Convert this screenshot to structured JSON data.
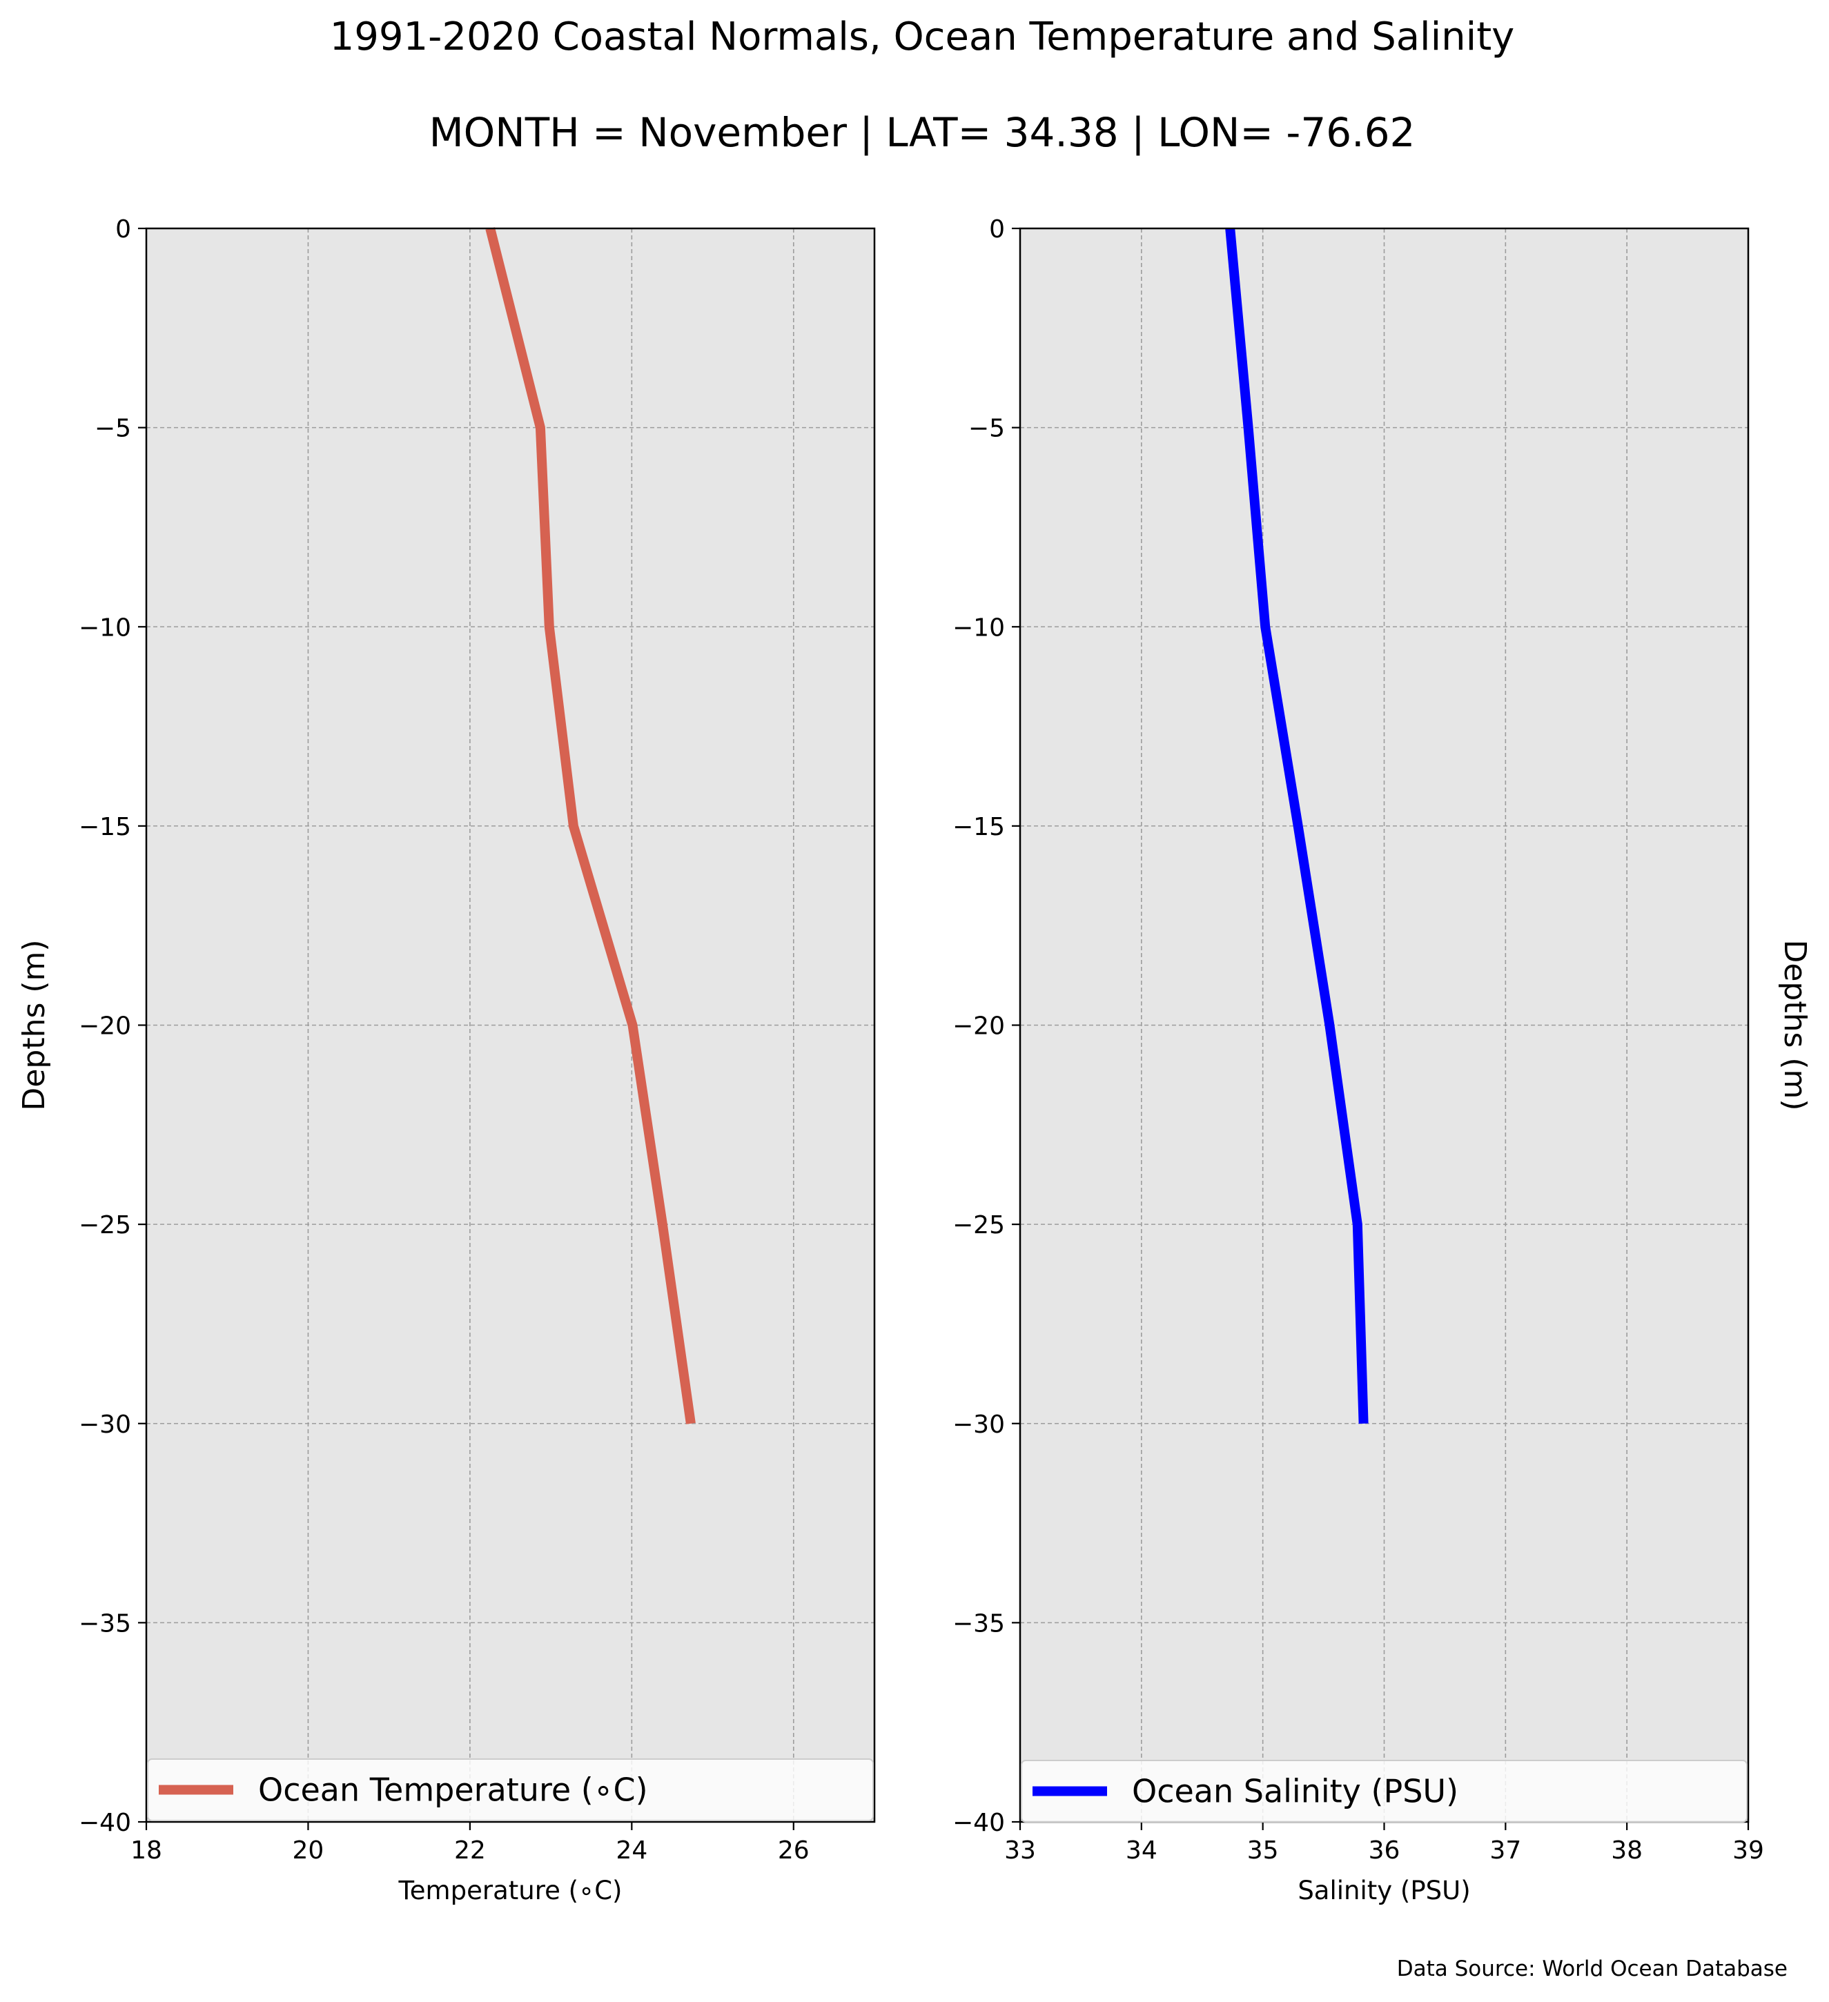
{
  "figure": {
    "title": "1991-2020 Coastal Normals, Ocean Temperature and Salinity",
    "subtitle": "MONTH = November | LAT= 34.38 | LON= -76.62",
    "source": "Data Source: World Ocean Database"
  },
  "chart_data": [
    {
      "type": "line",
      "xlabel": "Temperature ($^\\circ$C)",
      "xlabel_display": "Temperature (∘C)",
      "ylabel": "Depths (m)",
      "xlim": [
        18,
        27
      ],
      "ylim": [
        -40,
        0
      ],
      "xticks": [
        18,
        20,
        22,
        24,
        26
      ],
      "xtick_labels": [
        "18",
        "20",
        "22",
        "24",
        "26"
      ],
      "yticks": [
        0,
        -5,
        -10,
        -15,
        -20,
        -25,
        -30,
        -35,
        -40
      ],
      "ytick_labels": [
        "0",
        "−5",
        "−10",
        "−15",
        "−20",
        "−25",
        "−30",
        "−35",
        "−40"
      ],
      "grid": true,
      "legend_position": "lower center",
      "series": [
        {
          "name": "Ocean Temperature (∘C)",
          "color": "#d66251",
          "x": [
            22.25,
            22.87,
            22.98,
            23.28,
            24.01,
            24.38,
            24.73
          ],
          "y": [
            0,
            -5,
            -10,
            -15,
            -20,
            -25,
            -30
          ]
        }
      ]
    },
    {
      "type": "line",
      "xlabel": "Salinity (PSU)",
      "ylabel": "Depths (m)",
      "xlim": [
        33,
        39
      ],
      "ylim": [
        -40,
        0
      ],
      "xticks": [
        33,
        34,
        35,
        36,
        37,
        38,
        39
      ],
      "xtick_labels": [
        "33",
        "34",
        "35",
        "36",
        "37",
        "38",
        "39"
      ],
      "yticks": [
        0,
        -5,
        -10,
        -15,
        -20,
        -25,
        -30,
        -35,
        -40
      ],
      "ytick_labels": [
        "0",
        "−5",
        "−10",
        "−15",
        "−20",
        "−25",
        "−30",
        "−35",
        "−40"
      ],
      "grid": true,
      "legend_position": "lower center",
      "series": [
        {
          "name": "Ocean Salinity (PSU)",
          "color": "#0000ff",
          "x": [
            34.73,
            34.88,
            35.02,
            35.29,
            35.55,
            35.78,
            35.83
          ],
          "y": [
            0,
            -5,
            -10,
            -15,
            -20,
            -25,
            -30
          ]
        }
      ]
    }
  ]
}
